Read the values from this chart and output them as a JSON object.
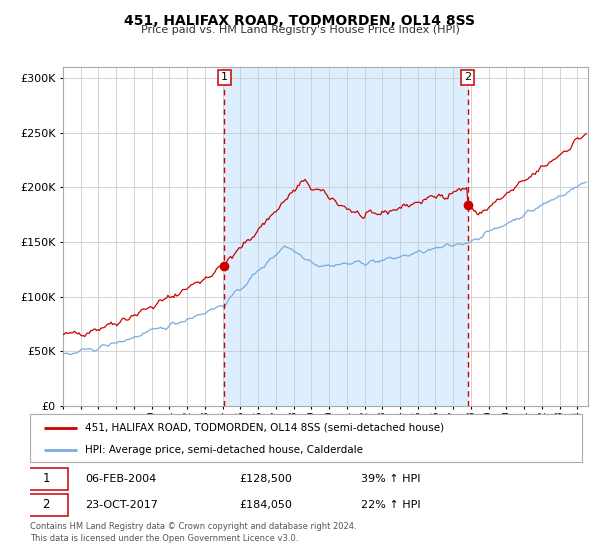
{
  "title": "451, HALIFAX ROAD, TODMORDEN, OL14 8SS",
  "subtitle": "Price paid vs. HM Land Registry's House Price Index (HPI)",
  "legend_line1": "451, HALIFAX ROAD, TODMORDEN, OL14 8SS (semi-detached house)",
  "legend_line2": "HPI: Average price, semi-detached house, Calderdale",
  "footnote": "Contains HM Land Registry data © Crown copyright and database right 2024.\nThis data is licensed under the Open Government Licence v3.0.",
  "marker1_date": "06-FEB-2004",
  "marker1_price": "£128,500",
  "marker1_hpi": "39% ↑ HPI",
  "marker2_date": "23-OCT-2017",
  "marker2_price": "£184,050",
  "marker2_hpi": "22% ↑ HPI",
  "red_color": "#cc0000",
  "blue_color": "#7aabdc",
  "shading_color": "#ddeeff",
  "dashed_line_color": "#cc0000",
  "background_color": "#ffffff",
  "grid_color": "#cccccc",
  "ylim": [
    0,
    310000
  ],
  "start_year": 1995,
  "end_year": 2024,
  "marker1_year": 2004.1,
  "marker2_year": 2017.82
}
